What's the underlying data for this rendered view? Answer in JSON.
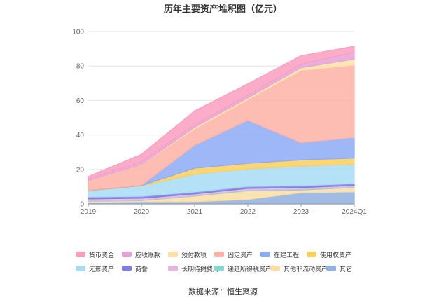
{
  "chart_data": {
    "type": "area",
    "stacked": true,
    "title": "历年主要资产堆积图（亿元）",
    "categories": [
      "2019",
      "2020",
      "2021",
      "2022",
      "2023",
      "2024Q1"
    ],
    "ylim": [
      0,
      100
    ],
    "yticks": [
      0,
      20,
      40,
      60,
      80,
      100
    ],
    "grid": true,
    "legend_position": "bottom",
    "series": [
      {
        "name": "其它",
        "color": "#8fb0e0",
        "values": [
          0.9,
          1.3,
          1.3,
          2.6,
          6.5,
          7.0
        ]
      },
      {
        "name": "其他非流动资产",
        "color": "#fddda5",
        "values": [
          0.6,
          0.6,
          3.2,
          5.0,
          1.5,
          2.5
        ]
      },
      {
        "name": "递延所得税资产",
        "color": "#86d6d3",
        "values": [
          0.2,
          0.2,
          0.3,
          0.4,
          0.4,
          0.4
        ]
      },
      {
        "name": "长期待摊费用",
        "color": "#e6b5dc",
        "values": [
          1.2,
          1.2,
          1.0,
          1.0,
          1.0,
          0.8
        ]
      },
      {
        "name": "商誉",
        "color": "#7d7de5",
        "values": [
          1.1,
          1.1,
          1.1,
          1.1,
          1.1,
          1.1
        ]
      },
      {
        "name": "无形资产",
        "color": "#a8dcf6",
        "values": [
          3.5,
          6.0,
          10.3,
          10.2,
          11.5,
          11.2
        ]
      },
      {
        "name": "使用权资产",
        "color": "#fbcf5b",
        "values": [
          0.2,
          0.2,
          3.5,
          3.2,
          3.5,
          3.5
        ]
      },
      {
        "name": "在建工程",
        "color": "#8daaf6",
        "values": [
          0.2,
          0.2,
          13.3,
          25.0,
          10.0,
          12.0
        ]
      },
      {
        "name": "固定资产",
        "color": "#fdb2a6",
        "values": [
          5.5,
          12.0,
          9.5,
          12.0,
          42.0,
          42.0
        ]
      },
      {
        "name": "预付款项",
        "color": "#fde0a8",
        "values": [
          0.1,
          0.1,
          1.0,
          1.0,
          1.5,
          3.5
        ]
      },
      {
        "name": "应收账款",
        "color": "#e6a2d6",
        "values": [
          0.8,
          1.6,
          1.5,
          1.5,
          2.0,
          4.0
        ]
      },
      {
        "name": "货币资金",
        "color": "#fa9ec0",
        "values": [
          1.6,
          4.3,
          8.0,
          6.7,
          5.0,
          3.5
        ]
      }
    ],
    "source": "数据来源：恒生聚源"
  },
  "legend": {
    "row1": [
      "货币资金",
      "应收账款",
      "预付款项",
      "固定资产",
      "在建工程",
      "使用权资产"
    ],
    "row2": [
      "无形资产",
      "商誉",
      "长期待摊费用",
      "递延所得税资产",
      "其他非流动资产",
      "其它"
    ]
  }
}
